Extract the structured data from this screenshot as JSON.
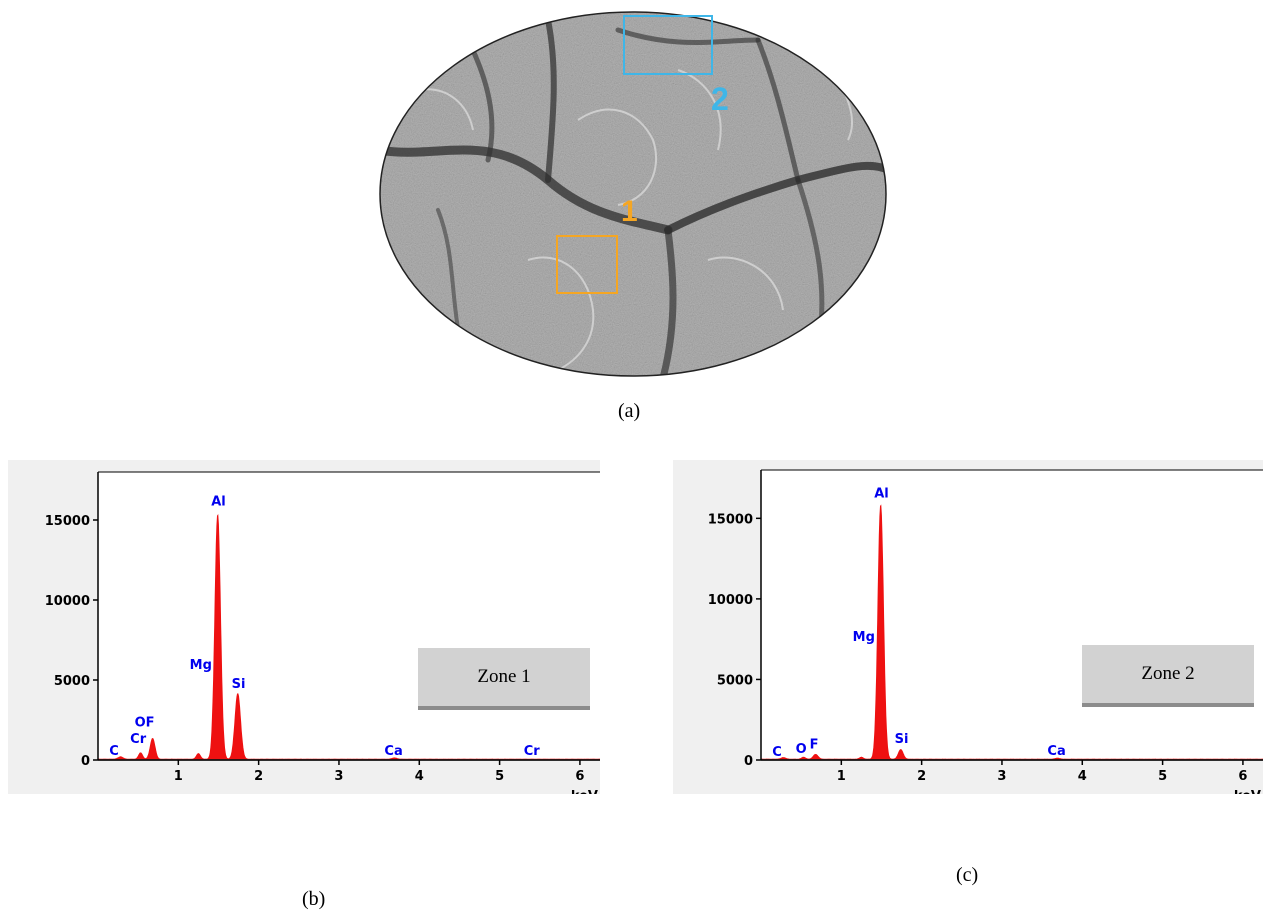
{
  "figure": {
    "captions": {
      "a": "(a)",
      "b": "(b)",
      "c": "(c)"
    },
    "micrograph": {
      "regions": [
        {
          "label": "1",
          "color": "#f5a623"
        },
        {
          "label": "2",
          "color": "#3fb6e8"
        }
      ]
    }
  },
  "chart_data": [
    {
      "type": "area",
      "zone_label": "Zone 1",
      "xlabel": "keV",
      "xlim": [
        0,
        6.25
      ],
      "ylim": [
        0,
        18000
      ],
      "x_ticks": [
        1,
        2,
        3,
        4,
        5,
        6
      ],
      "y_ticks": [
        0,
        5000,
        10000,
        15000
      ],
      "series_color": "#ee1111",
      "label_color": "#0000ee",
      "peaks": [
        {
          "x": 0.28,
          "height": 150,
          "width": 0.03
        },
        {
          "x": 0.53,
          "height": 400,
          "width": 0.025
        },
        {
          "x": 0.68,
          "height": 1300,
          "width": 0.03
        },
        {
          "x": 1.25,
          "height": 350,
          "width": 0.025
        },
        {
          "x": 1.49,
          "height": 15300,
          "width": 0.035
        },
        {
          "x": 1.74,
          "height": 4100,
          "width": 0.035
        },
        {
          "x": 3.69,
          "height": 80,
          "width": 0.03
        }
      ],
      "element_labels": [
        {
          "text": "C",
          "x": 0.2,
          "y": 300
        },
        {
          "text": "Cr",
          "x": 0.5,
          "y": 1050
        },
        {
          "text": "OF",
          "x": 0.58,
          "y": 2100
        },
        {
          "text": "Mg",
          "x": 1.28,
          "y": 5700
        },
        {
          "text": "Al",
          "x": 1.5,
          "y": 15900
        },
        {
          "text": "Si",
          "x": 1.75,
          "y": 4500
        },
        {
          "text": "Ca",
          "x": 3.68,
          "y": 300
        },
        {
          "text": "Cr",
          "x": 5.4,
          "y": 300
        }
      ]
    },
    {
      "type": "area",
      "zone_label": "Zone 2",
      "xlabel": "keV",
      "xlim": [
        0,
        6.25
      ],
      "ylim": [
        0,
        18000
      ],
      "x_ticks": [
        1,
        2,
        3,
        4,
        5,
        6
      ],
      "y_ticks": [
        0,
        5000,
        10000,
        15000
      ],
      "series_color": "#ee1111",
      "label_color": "#0000ee",
      "peaks": [
        {
          "x": 0.28,
          "height": 100,
          "width": 0.03
        },
        {
          "x": 0.53,
          "height": 120,
          "width": 0.025
        },
        {
          "x": 0.68,
          "height": 300,
          "width": 0.03
        },
        {
          "x": 1.25,
          "height": 120,
          "width": 0.025
        },
        {
          "x": 1.49,
          "height": 15800,
          "width": 0.035
        },
        {
          "x": 1.74,
          "height": 600,
          "width": 0.03
        },
        {
          "x": 3.69,
          "height": 60,
          "width": 0.03
        }
      ],
      "element_labels": [
        {
          "text": "C",
          "x": 0.2,
          "y": 250
        },
        {
          "text": "O",
          "x": 0.5,
          "y": 450
        },
        {
          "text": "F",
          "x": 0.66,
          "y": 700
        },
        {
          "text": "Mg",
          "x": 1.28,
          "y": 7400
        },
        {
          "text": "Al",
          "x": 1.5,
          "y": 16300
        },
        {
          "text": "Si",
          "x": 1.75,
          "y": 1050
        },
        {
          "text": "Ca",
          "x": 3.68,
          "y": 300
        }
      ]
    }
  ]
}
